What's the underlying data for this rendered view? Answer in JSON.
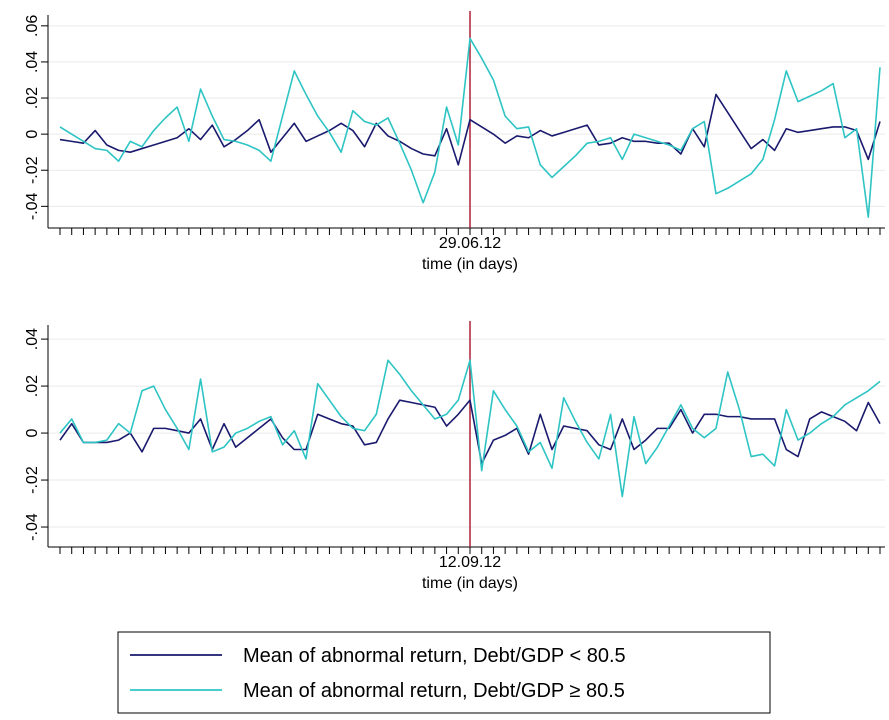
{
  "chart_data": [
    {
      "type": "line",
      "categories": [
        null,
        null,
        null,
        null,
        null,
        null,
        null,
        null,
        null,
        null,
        null,
        null,
        null,
        null,
        null,
        null,
        null,
        null,
        null,
        null,
        null,
        null,
        null,
        null,
        null,
        null,
        null,
        null,
        null,
        null,
        null,
        null,
        null,
        null,
        null,
        "29.06.12",
        null,
        null,
        null,
        null,
        null,
        null,
        null,
        null,
        null,
        null,
        null,
        null,
        null,
        null,
        null,
        null,
        null,
        null,
        null,
        null,
        null,
        null,
        null,
        null,
        null,
        null,
        null,
        null,
        null,
        null,
        null,
        null,
        null,
        null,
        null
      ],
      "event_index": 35,
      "x_label": "time (in days)",
      "ylim": [
        -0.052,
        0.066
      ],
      "yticks": [
        {
          "value": -0.04,
          "label": "-.04"
        },
        {
          "value": -0.02,
          "label": "-.02"
        },
        0,
        {
          "value": 0.02,
          "label": ".02"
        },
        {
          "value": 0.04,
          "label": ".04"
        },
        {
          "value": 0.06,
          "label": ".06"
        }
      ],
      "grid": true,
      "series": [
        {
          "name": "Mean of abnormal return, Debt/GDP < 80.5",
          "color": "#1a1a6e",
          "values": [
            -0.003,
            -0.004,
            -0.005,
            0.002,
            -0.006,
            -0.009,
            -0.01,
            -0.008,
            -0.006,
            -0.004,
            -0.002,
            0.003,
            -0.003,
            0.005,
            -0.007,
            -0.003,
            0.002,
            0.008,
            -0.01,
            -0.002,
            0.006,
            -0.004,
            -0.001,
            0.002,
            0.006,
            0.002,
            -0.007,
            0.006,
            -0.001,
            -0.004,
            -0.008,
            -0.011,
            -0.012,
            0.003,
            -0.017,
            0.008,
            0.004,
            0.0,
            -0.005,
            -0.001,
            -0.002,
            0.002,
            -0.001,
            0.001,
            0.003,
            0.005,
            -0.006,
            -0.005,
            -0.002,
            -0.004,
            -0.004,
            -0.005,
            -0.005,
            -0.011,
            0.003,
            -0.007,
            0.022,
            0.012,
            0.002,
            -0.008,
            -0.003,
            -0.009,
            0.003,
            0.001,
            0.002,
            0.003,
            0.004,
            0.004,
            0.002,
            -0.014,
            0.007
          ]
        },
        {
          "name": "Mean of abnormal return, Debt/GDP ≥ 80.5",
          "color": "#2ec4c4",
          "values": [
            0.004,
            0.0,
            -0.004,
            -0.008,
            -0.009,
            -0.015,
            -0.004,
            -0.007,
            0.002,
            0.009,
            0.015,
            -0.004,
            0.025,
            0.01,
            -0.003,
            -0.004,
            -0.006,
            -0.009,
            -0.015,
            0.01,
            0.035,
            0.022,
            0.01,
            0.001,
            -0.01,
            0.013,
            0.007,
            0.005,
            0.009,
            -0.005,
            -0.02,
            -0.038,
            -0.021,
            0.015,
            -0.006,
            0.053,
            0.042,
            0.03,
            0.01,
            0.003,
            0.004,
            -0.017,
            -0.024,
            -0.018,
            -0.012,
            -0.005,
            -0.004,
            -0.002,
            -0.014,
            0.0,
            -0.002,
            -0.004,
            -0.006,
            -0.009,
            0.003,
            0.007,
            -0.033,
            -0.03,
            -0.026,
            -0.022,
            -0.014,
            0.008,
            0.035,
            0.018,
            0.021,
            0.024,
            0.028,
            -0.002,
            0.003,
            -0.046,
            0.037
          ]
        }
      ]
    },
    {
      "type": "line",
      "categories": [
        null,
        null,
        null,
        null,
        null,
        null,
        null,
        null,
        null,
        null,
        null,
        null,
        null,
        null,
        null,
        null,
        null,
        null,
        null,
        null,
        null,
        null,
        null,
        null,
        null,
        null,
        null,
        null,
        null,
        null,
        null,
        null,
        null,
        null,
        null,
        "12.09.12",
        null,
        null,
        null,
        null,
        null,
        null,
        null,
        null,
        null,
        null,
        null,
        null,
        null,
        null,
        null,
        null,
        null,
        null,
        null,
        null,
        null,
        null,
        null,
        null,
        null,
        null,
        null,
        null,
        null,
        null,
        null,
        null,
        null,
        null,
        null
      ],
      "event_index": 35,
      "x_label": "time (in days)",
      "ylim": [
        -0.0485,
        0.046
      ],
      "yticks": [
        {
          "value": -0.04,
          "label": "-.04"
        },
        {
          "value": -0.02,
          "label": "-.02"
        },
        0,
        {
          "value": 0.02,
          "label": ".02"
        },
        {
          "value": 0.04,
          "label": ".04"
        }
      ],
      "grid": true,
      "series": [
        {
          "color": "#1a1a6e",
          "values": [
            -0.003,
            0.004,
            -0.004,
            -0.004,
            -0.004,
            -0.003,
            0.0,
            -0.008,
            0.002,
            0.002,
            0.001,
            0.0,
            0.006,
            -0.007,
            0.004,
            -0.006,
            -0.002,
            0.002,
            0.006,
            -0.002,
            -0.007,
            -0.007,
            0.008,
            0.006,
            0.004,
            0.003,
            -0.005,
            -0.004,
            0.006,
            0.014,
            0.013,
            0.012,
            0.011,
            0.003,
            0.008,
            0.014,
            -0.013,
            -0.003,
            -0.001,
            0.002,
            -0.009,
            0.008,
            -0.007,
            0.003,
            0.002,
            0.001,
            -0.005,
            -0.007,
            0.006,
            -0.007,
            -0.003,
            0.002,
            0.002,
            0.01,
            0.0,
            0.008,
            0.008,
            0.007,
            0.007,
            0.006,
            0.006,
            0.006,
            -0.007,
            -0.01,
            0.006,
            0.009,
            0.007,
            0.005,
            0.001,
            0.013,
            0.004
          ]
        },
        {
          "color": "#2ec4c4",
          "values": [
            0.0,
            0.006,
            -0.004,
            -0.004,
            -0.003,
            0.004,
            0.0,
            0.018,
            0.02,
            0.01,
            0.002,
            -0.007,
            0.023,
            -0.008,
            -0.006,
            0.0,
            0.002,
            0.005,
            0.007,
            -0.005,
            0.001,
            -0.011,
            0.021,
            0.014,
            0.007,
            0.002,
            0.001,
            0.008,
            0.031,
            0.025,
            0.018,
            0.012,
            0.006,
            0.008,
            0.014,
            0.031,
            -0.016,
            0.018,
            0.01,
            0.003,
            -0.008,
            -0.004,
            -0.015,
            0.015,
            0.005,
            -0.004,
            -0.011,
            0.008,
            -0.027,
            0.007,
            -0.013,
            -0.006,
            0.003,
            0.012,
            0.002,
            -0.002,
            0.002,
            0.026,
            0.01,
            -0.01,
            -0.009,
            -0.014,
            0.01,
            -0.003,
            0.0,
            0.004,
            0.007,
            0.012,
            0.015,
            0.018,
            0.022
          ]
        }
      ]
    }
  ]
}
